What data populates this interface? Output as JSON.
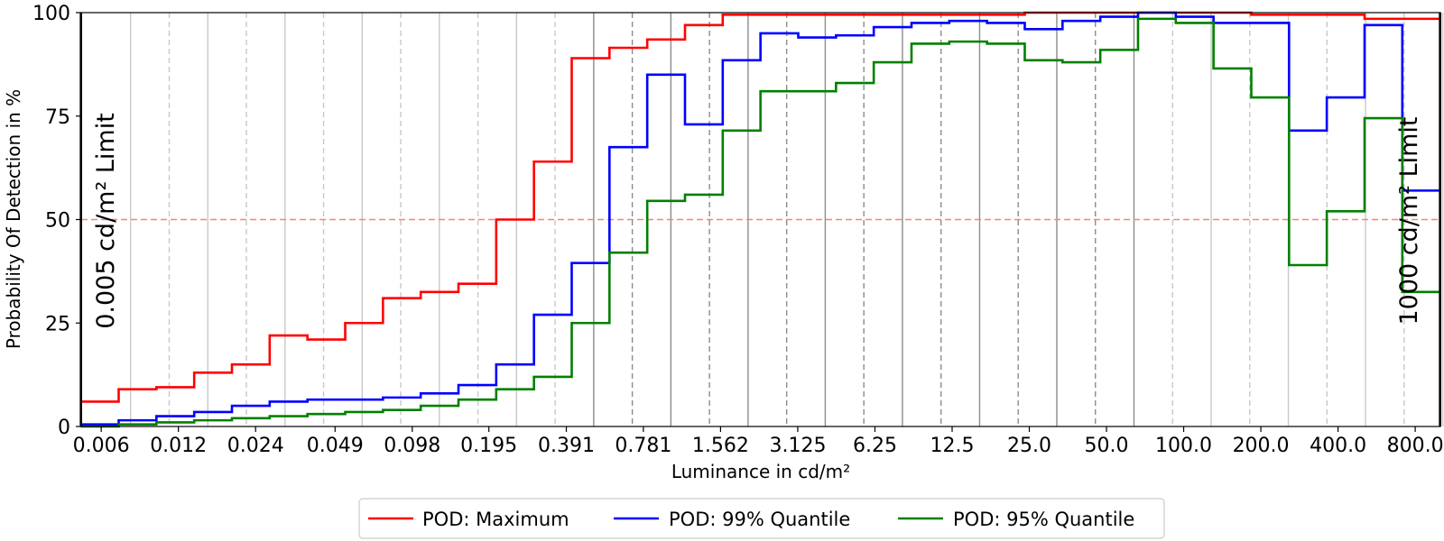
{
  "chart_data": {
    "type": "line",
    "step": "post",
    "xlabel": "Luminance in cd/m²",
    "ylabel": "Probability Of Detection in %",
    "ylim": [
      0,
      100
    ],
    "yticks": [
      0,
      25,
      50,
      75,
      100
    ],
    "xtick_labels": [
      "0.006",
      "0.012",
      "0.024",
      "0.049",
      "0.098",
      "0.195",
      "0.391",
      "0.781",
      "1.562",
      "3.125",
      "6.25",
      "12.5",
      "25.0",
      "50.0",
      "100.0",
      "200.0",
      "400.0",
      "800.0"
    ],
    "x_log2_range": [
      -7.64,
      9.97
    ],
    "reference_line": {
      "y": 50,
      "color": "#ff7f7f",
      "style": "dashed"
    },
    "limits": [
      {
        "label": "0.005 cd/m² Limit",
        "value": 0.005,
        "side": "left"
      },
      {
        "label": "1000 cd/m² Limit",
        "value": 1000,
        "side": "right"
      }
    ],
    "grid": "vertical",
    "legend_position": "bottom-center",
    "series": [
      {
        "name": "POD: Maximum",
        "color": "#ff0000",
        "values": [
          6,
          9,
          9.5,
          13,
          15,
          22,
          21,
          25,
          31,
          32.5,
          34.5,
          50,
          64,
          89,
          91.5,
          93.5,
          97,
          99.5,
          99.5,
          99.5,
          99.5,
          99.5,
          99.5,
          99.5,
          99.5,
          100,
          100,
          100,
          100,
          100,
          100,
          99.5,
          99.5,
          99.5,
          98.5,
          98.5
        ]
      },
      {
        "name": "POD: 99% Quantile",
        "color": "#0000ff",
        "values": [
          0.5,
          1.5,
          2.5,
          3.5,
          5,
          6,
          6.5,
          6.5,
          7,
          8,
          10,
          15,
          27,
          39.5,
          67.5,
          85,
          73,
          88.5,
          95,
          94,
          94.5,
          96.5,
          97.5,
          98,
          97.5,
          96,
          98,
          99,
          100,
          99,
          97.5,
          97.5,
          71.5,
          79.5,
          97,
          57
        ]
      },
      {
        "name": "POD: 95% Quantile",
        "color": "#008000",
        "values": [
          0,
          0.5,
          1,
          1.5,
          2,
          2.5,
          3,
          3.5,
          4,
          5,
          6.5,
          9,
          12,
          25,
          42,
          54.5,
          56,
          71.5,
          81,
          81,
          83,
          88,
          92.5,
          93,
          92.5,
          88.5,
          88,
          91,
          98.5,
          97.5,
          86.5,
          79.5,
          39,
          52,
          74.5,
          32.5
        ]
      }
    ]
  }
}
